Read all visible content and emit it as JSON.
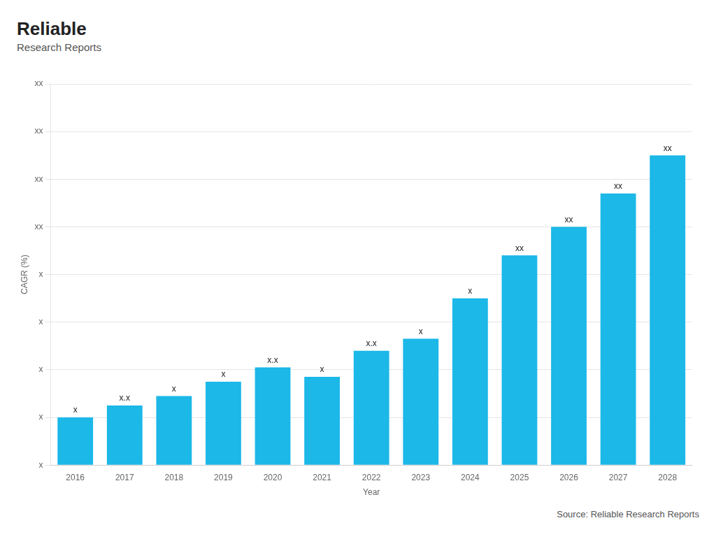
{
  "chart_data": {
    "type": "bar",
    "categories": [
      "2016",
      "2017",
      "2018",
      "2019",
      "2020",
      "2021",
      "2022",
      "2023",
      "2024",
      "2025",
      "2026",
      "2027",
      "2028"
    ],
    "values": [
      1.0,
      1.25,
      1.45,
      1.75,
      2.05,
      1.85,
      2.4,
      2.65,
      3.5,
      4.4,
      5.0,
      5.7,
      6.5
    ],
    "value_labels": [
      "x",
      "x.x",
      "x",
      "x",
      "x.x",
      "x",
      "x.x",
      "x",
      "x",
      "xx",
      "xx",
      "xx",
      "xx"
    ],
    "data_labels": true,
    "color": "#1BB8E8",
    "x_label": "Year",
    "y_label": "CAGR (%)",
    "ylim": [
      0,
      8
    ],
    "yticks": [
      {
        "value": 0,
        "label": "x"
      },
      {
        "value": 1,
        "label": "x"
      },
      {
        "value": 2,
        "label": "x"
      },
      {
        "value": 3,
        "label": "x"
      },
      {
        "value": 4,
        "label": "x"
      },
      {
        "value": 5,
        "label": "xx"
      },
      {
        "value": 6,
        "label": "xx"
      },
      {
        "value": 7,
        "label": "xx"
      },
      {
        "value": 8,
        "label": "xx"
      }
    ],
    "grid": true,
    "annotations": [
      "Reliable",
      "Research Reports",
      "Source: Reliable Research Reports"
    ]
  }
}
